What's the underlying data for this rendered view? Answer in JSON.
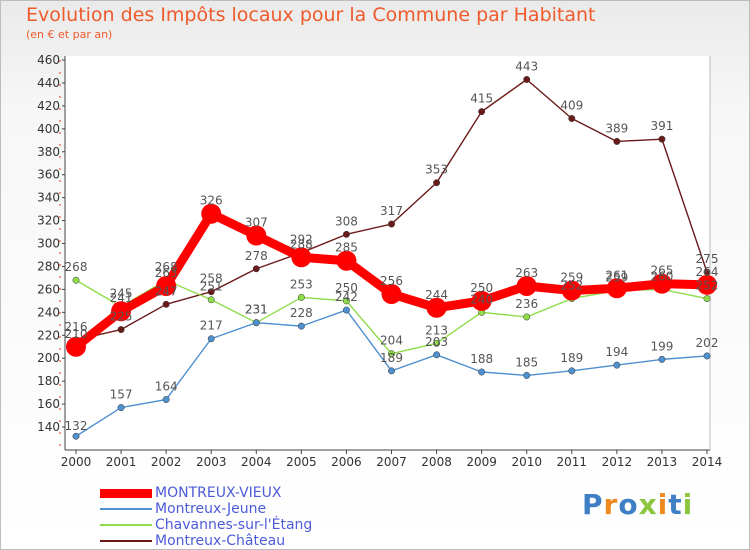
{
  "chart_data": {
    "type": "line",
    "title": "Evolution des Impôts locaux pour la Commune par Habitant",
    "subtitle": "(en € et par an)",
    "xlabel": "",
    "ylabel": "",
    "ylim": [
      120,
      460
    ],
    "yticks": [
      140,
      160,
      180,
      200,
      220,
      240,
      260,
      280,
      300,
      320,
      340,
      360,
      380,
      400,
      420,
      440,
      460
    ],
    "categories": [
      "2000",
      "2001",
      "2002",
      "2003",
      "2004",
      "2005",
      "2006",
      "2007",
      "2008",
      "2009",
      "2010",
      "2011",
      "2012",
      "2013",
      "2014"
    ],
    "series": [
      {
        "name": "MONTREUX-VIEUX",
        "color": "#ff0000",
        "width": 9,
        "marker": 10,
        "values": [
          210,
          241,
          263,
          326,
          307,
          288,
          285,
          256,
          244,
          250,
          263,
          259,
          261,
          265,
          264
        ]
      },
      {
        "name": "Montreux-Jeune",
        "color": "#4f90cf",
        "width": 1.4,
        "marker": 3.2,
        "values": [
          132,
          157,
          164,
          217,
          231,
          228,
          242,
          189,
          203,
          188,
          185,
          189,
          194,
          199,
          202
        ]
      },
      {
        "name": "Chavannes-sur-l'Étang",
        "color": "#8fdc4a",
        "width": 1.4,
        "marker": 3.2,
        "values": [
          268,
          245,
          268,
          251,
          231,
          253,
          250,
          204,
          213,
          240,
          236,
          252,
          259,
          260,
          252
        ]
      },
      {
        "name": "Montreux-Château",
        "color": "#6b1a1a",
        "width": 1.4,
        "marker": 3.2,
        "values": [
          216,
          225,
          247,
          258,
          278,
          292,
          308,
          317,
          353,
          415,
          443,
          409,
          389,
          391,
          275
        ]
      }
    ],
    "data_labels": [
      {
        "series": 0,
        "labels": [
          "210",
          "241",
          "263",
          "326",
          "307",
          "288",
          "285",
          "256",
          "244",
          "250",
          "263",
          "259",
          "261",
          "265",
          "264"
        ]
      },
      {
        "series": 1,
        "labels": [
          "132",
          "157",
          "164",
          "217",
          "231",
          "228",
          "242",
          "189",
          "203",
          "188",
          "185",
          "189",
          "194",
          "199",
          "202"
        ]
      },
      {
        "series": 2,
        "labels": [
          "268",
          "245",
          "268",
          "251",
          "231",
          "253",
          "250",
          "204",
          "213",
          "240",
          "236",
          "252",
          "259",
          "260",
          "252"
        ]
      },
      {
        "series": 3,
        "labels": [
          "216",
          "225",
          "247",
          "258",
          "278",
          "292",
          "308",
          "317",
          "353",
          "415",
          "443",
          "409",
          "389",
          "391",
          "275"
        ]
      }
    ],
    "legend": [
      "MONTREUX-VIEUX",
      "Montreux-Jeune",
      "Chavannes-sur-l'Étang",
      "Montreux-Château"
    ],
    "legend_position": "bottom-left",
    "grid": false
  },
  "logo": {
    "text": "Proxiti",
    "colors": [
      "#3f7fc4",
      "#ef8a1f",
      "#3f7fc4",
      "#8cc63e",
      "#ef8a1f",
      "#3f7fc4",
      "#8cc63e"
    ]
  }
}
